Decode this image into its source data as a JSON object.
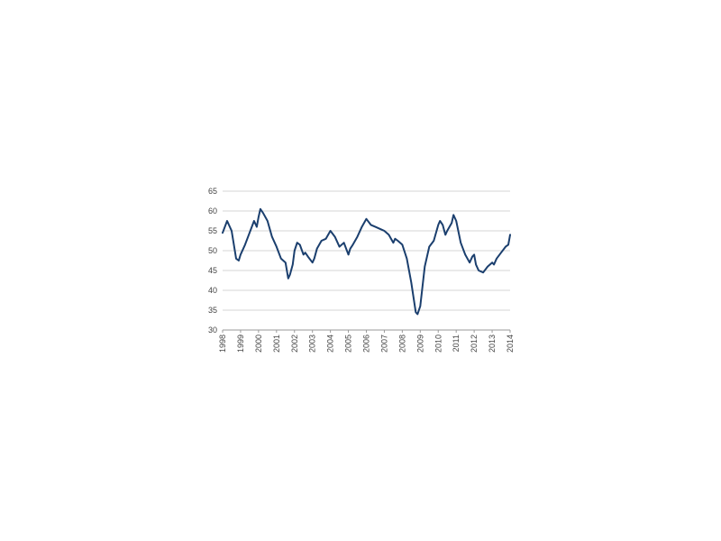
{
  "chart_data": {
    "type": "line",
    "title": "",
    "xlabel": "",
    "ylabel": "",
    "ylim": [
      30,
      65
    ],
    "xlim": [
      1998,
      2014
    ],
    "yticks": [
      30,
      35,
      40,
      45,
      50,
      55,
      60,
      65
    ],
    "xticks": [
      "1998",
      "1999",
      "2000",
      "2001",
      "2002",
      "2003",
      "2004",
      "2005",
      "2006",
      "2007",
      "2008",
      "2009",
      "2010",
      "2011",
      "2012",
      "2013",
      "2014"
    ],
    "grid": "horizontal",
    "legend": "none",
    "series": [
      {
        "color": "#1b3f6e",
        "x": [
          1998.0,
          1998.25,
          1998.5,
          1998.75,
          1998.9,
          1999.0,
          1999.25,
          1999.5,
          1999.75,
          1999.9,
          2000.0,
          2000.1,
          2000.25,
          2000.5,
          2000.75,
          2001.0,
          2001.25,
          2001.5,
          2001.65,
          2001.75,
          2001.9,
          2002.0,
          2002.15,
          2002.3,
          2002.5,
          2002.6,
          2002.75,
          2003.0,
          2003.1,
          2003.25,
          2003.5,
          2003.75,
          2004.0,
          2004.25,
          2004.5,
          2004.75,
          2005.0,
          2005.1,
          2005.25,
          2005.5,
          2005.75,
          2006.0,
          2006.25,
          2006.5,
          2006.75,
          2007.0,
          2007.25,
          2007.5,
          2007.6,
          2007.75,
          2008.0,
          2008.25,
          2008.5,
          2008.75,
          2008.85,
          2009.0,
          2009.1,
          2009.25,
          2009.5,
          2009.75,
          2010.0,
          2010.1,
          2010.25,
          2010.4,
          2010.5,
          2010.75,
          2010.85,
          2011.0,
          2011.25,
          2011.5,
          2011.75,
          2011.9,
          2012.0,
          2012.1,
          2012.25,
          2012.5,
          2012.75,
          2013.0,
          2013.1,
          2013.25,
          2013.5,
          2013.75,
          2013.9,
          2014.0
        ],
        "values": [
          54.5,
          57.5,
          55.0,
          48.0,
          47.5,
          49.0,
          51.5,
          54.5,
          57.5,
          56.0,
          58.5,
          60.5,
          59.5,
          57.5,
          53.5,
          51.0,
          48.0,
          47.0,
          43.0,
          44.0,
          46.5,
          50.0,
          52.0,
          51.5,
          49.0,
          49.5,
          48.5,
          47.0,
          48.0,
          50.5,
          52.5,
          53.0,
          55.0,
          53.5,
          51.0,
          52.0,
          49.0,
          50.5,
          51.5,
          53.5,
          56.0,
          58.0,
          56.5,
          56.0,
          55.5,
          55.0,
          54.0,
          52.0,
          53.0,
          52.5,
          51.5,
          48.0,
          42.0,
          34.5,
          34.0,
          36.0,
          40.0,
          46.0,
          51.0,
          52.5,
          56.5,
          57.5,
          56.5,
          54.0,
          55.0,
          57.0,
          59.0,
          57.5,
          52.0,
          49.0,
          47.0,
          48.5,
          49.0,
          46.5,
          45.0,
          44.5,
          46.0,
          47.0,
          46.5,
          48.0,
          49.5,
          51.0,
          51.5,
          54.0
        ]
      }
    ]
  }
}
